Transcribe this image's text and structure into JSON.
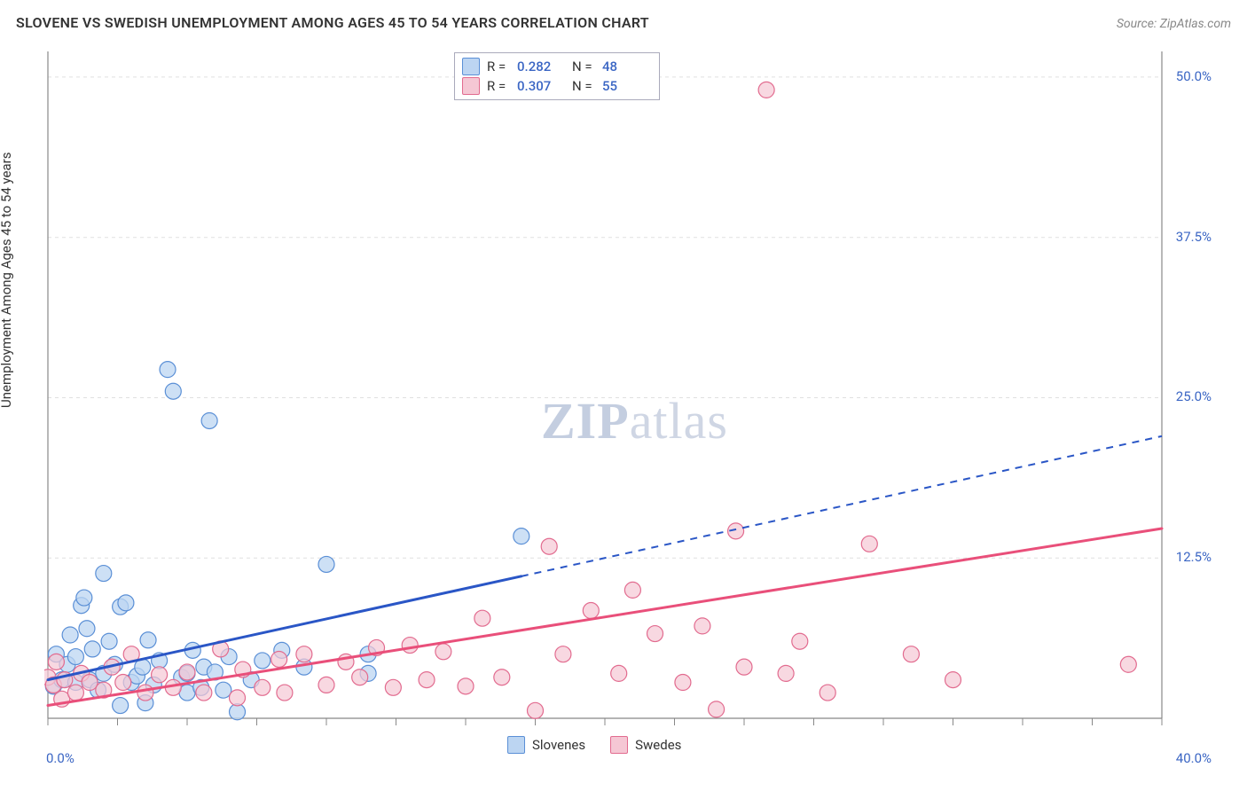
{
  "header": {
    "title": "SLOVENE VS SWEDISH UNEMPLOYMENT AMONG AGES 45 TO 54 YEARS CORRELATION CHART",
    "source_prefix": "Source: ",
    "source_name": "ZipAtlas.com"
  },
  "yaxis_label": "Unemployment Among Ages 45 to 54 years",
  "watermark": {
    "bold": "ZIP",
    "rest": "atlas"
  },
  "chart": {
    "type": "scatter-with-regression",
    "background_color": "#ffffff",
    "grid_color": "#e0e0e0",
    "axis_color": "#888888",
    "xlim": [
      0,
      40
    ],
    "ylim": [
      0,
      52
    ],
    "xticks_minor": [
      0,
      2.5,
      5,
      7.5,
      10,
      12.5,
      15,
      17.5,
      20,
      22.5,
      25,
      27.5,
      30,
      32.5,
      35,
      37.5,
      40
    ],
    "yticks": [
      {
        "v": 12.5,
        "label": "12.5%"
      },
      {
        "v": 25.0,
        "label": "25.0%"
      },
      {
        "v": 37.5,
        "label": "37.5%"
      },
      {
        "v": 50.0,
        "label": "50.0%"
      }
    ],
    "xaxis_end_labels": {
      "min": "0.0%",
      "max": "40.0%"
    },
    "series": [
      {
        "name": "Slovenes",
        "legend_label": "Slovenes",
        "stats": {
          "r_label": "R =",
          "r": "0.282",
          "n_label": "N =",
          "n": "48"
        },
        "marker_fill": "#bcd5f2",
        "marker_stroke": "#5a8fd6",
        "marker_opacity": 0.75,
        "marker_radius": 9,
        "line_color": "#2a56c6",
        "line_width": 3,
        "regression": {
          "x1": 0,
          "y1": 3.0,
          "x2": 40,
          "y2": 22.0,
          "solid_until_x": 17
        },
        "points": [
          [
            0.2,
            2.5
          ],
          [
            0.3,
            5.0
          ],
          [
            0.5,
            3.0
          ],
          [
            0.7,
            4.2
          ],
          [
            0.8,
            6.5
          ],
          [
            1.0,
            2.8
          ],
          [
            1.0,
            4.8
          ],
          [
            1.2,
            8.8
          ],
          [
            1.3,
            9.4
          ],
          [
            1.4,
            7.0
          ],
          [
            1.5,
            3.0
          ],
          [
            1.6,
            5.4
          ],
          [
            1.8,
            2.2
          ],
          [
            2.0,
            11.3
          ],
          [
            2.0,
            3.5
          ],
          [
            2.2,
            6.0
          ],
          [
            2.4,
            4.2
          ],
          [
            2.6,
            1.0
          ],
          [
            2.6,
            8.7
          ],
          [
            2.8,
            9.0
          ],
          [
            3.0,
            2.8
          ],
          [
            3.2,
            3.3
          ],
          [
            3.4,
            4.0
          ],
          [
            3.5,
            1.2
          ],
          [
            3.6,
            6.1
          ],
          [
            3.8,
            2.6
          ],
          [
            4.0,
            4.5
          ],
          [
            4.3,
            27.2
          ],
          [
            4.5,
            25.5
          ],
          [
            4.8,
            3.2
          ],
          [
            5.0,
            2.0
          ],
          [
            5.0,
            3.5
          ],
          [
            5.2,
            5.3
          ],
          [
            5.5,
            2.4
          ],
          [
            5.6,
            4.0
          ],
          [
            5.8,
            23.2
          ],
          [
            6.0,
            3.6
          ],
          [
            6.3,
            2.2
          ],
          [
            6.5,
            4.8
          ],
          [
            6.8,
            0.5
          ],
          [
            7.3,
            3.0
          ],
          [
            7.7,
            4.5
          ],
          [
            8.4,
            5.3
          ],
          [
            9.2,
            4.0
          ],
          [
            10.0,
            12.0
          ],
          [
            11.5,
            3.5
          ],
          [
            11.5,
            5.0
          ],
          [
            17.0,
            14.2
          ]
        ]
      },
      {
        "name": "Swedes",
        "legend_label": "Swedes",
        "stats": {
          "r_label": "R =",
          "r": "0.307",
          "n_label": "N =",
          "n": "55"
        },
        "marker_fill": "#f5c7d4",
        "marker_stroke": "#e26b8f",
        "marker_opacity": 0.7,
        "marker_radius": 9,
        "line_color": "#e94f7a",
        "line_width": 3,
        "regression": {
          "x1": 0,
          "y1": 1.0,
          "x2": 40,
          "y2": 14.8,
          "solid_until_x": 40
        },
        "points": [
          [
            0.0,
            3.2
          ],
          [
            0.2,
            2.6
          ],
          [
            0.3,
            4.4
          ],
          [
            0.5,
            1.5
          ],
          [
            0.6,
            3.0
          ],
          [
            1.0,
            2.0
          ],
          [
            1.2,
            3.5
          ],
          [
            1.5,
            2.8
          ],
          [
            2.0,
            2.2
          ],
          [
            2.3,
            4.0
          ],
          [
            2.7,
            2.8
          ],
          [
            3.0,
            5.0
          ],
          [
            3.5,
            2.0
          ],
          [
            4.0,
            3.4
          ],
          [
            4.5,
            2.4
          ],
          [
            5.0,
            3.6
          ],
          [
            5.6,
            2.0
          ],
          [
            6.2,
            5.4
          ],
          [
            6.8,
            1.6
          ],
          [
            7.0,
            3.8
          ],
          [
            7.7,
            2.4
          ],
          [
            8.3,
            4.6
          ],
          [
            8.5,
            2.0
          ],
          [
            9.2,
            5.0
          ],
          [
            10.0,
            2.6
          ],
          [
            10.7,
            4.4
          ],
          [
            11.2,
            3.2
          ],
          [
            11.8,
            5.5
          ],
          [
            12.4,
            2.4
          ],
          [
            13.0,
            5.7
          ],
          [
            13.6,
            3.0
          ],
          [
            14.2,
            5.2
          ],
          [
            15.0,
            2.5
          ],
          [
            15.6,
            7.8
          ],
          [
            16.3,
            3.2
          ],
          [
            17.5,
            0.6
          ],
          [
            18.0,
            13.4
          ],
          [
            18.5,
            5.0
          ],
          [
            19.5,
            8.4
          ],
          [
            20.5,
            3.5
          ],
          [
            21.0,
            10.0
          ],
          [
            21.8,
            6.6
          ],
          [
            22.8,
            2.8
          ],
          [
            23.5,
            7.2
          ],
          [
            24.0,
            0.7
          ],
          [
            24.7,
            14.6
          ],
          [
            25.0,
            4.0
          ],
          [
            25.8,
            49.0
          ],
          [
            26.5,
            3.5
          ],
          [
            27.0,
            6.0
          ],
          [
            28.0,
            2.0
          ],
          [
            29.5,
            13.6
          ],
          [
            31.0,
            5.0
          ],
          [
            32.5,
            3.0
          ],
          [
            38.8,
            4.2
          ]
        ]
      }
    ]
  },
  "legend_bottom": [
    {
      "label": "Slovenes",
      "fill": "#bcd5f2",
      "stroke": "#5a8fd6"
    },
    {
      "label": "Swedes",
      "fill": "#f5c7d4",
      "stroke": "#e26b8f"
    }
  ]
}
